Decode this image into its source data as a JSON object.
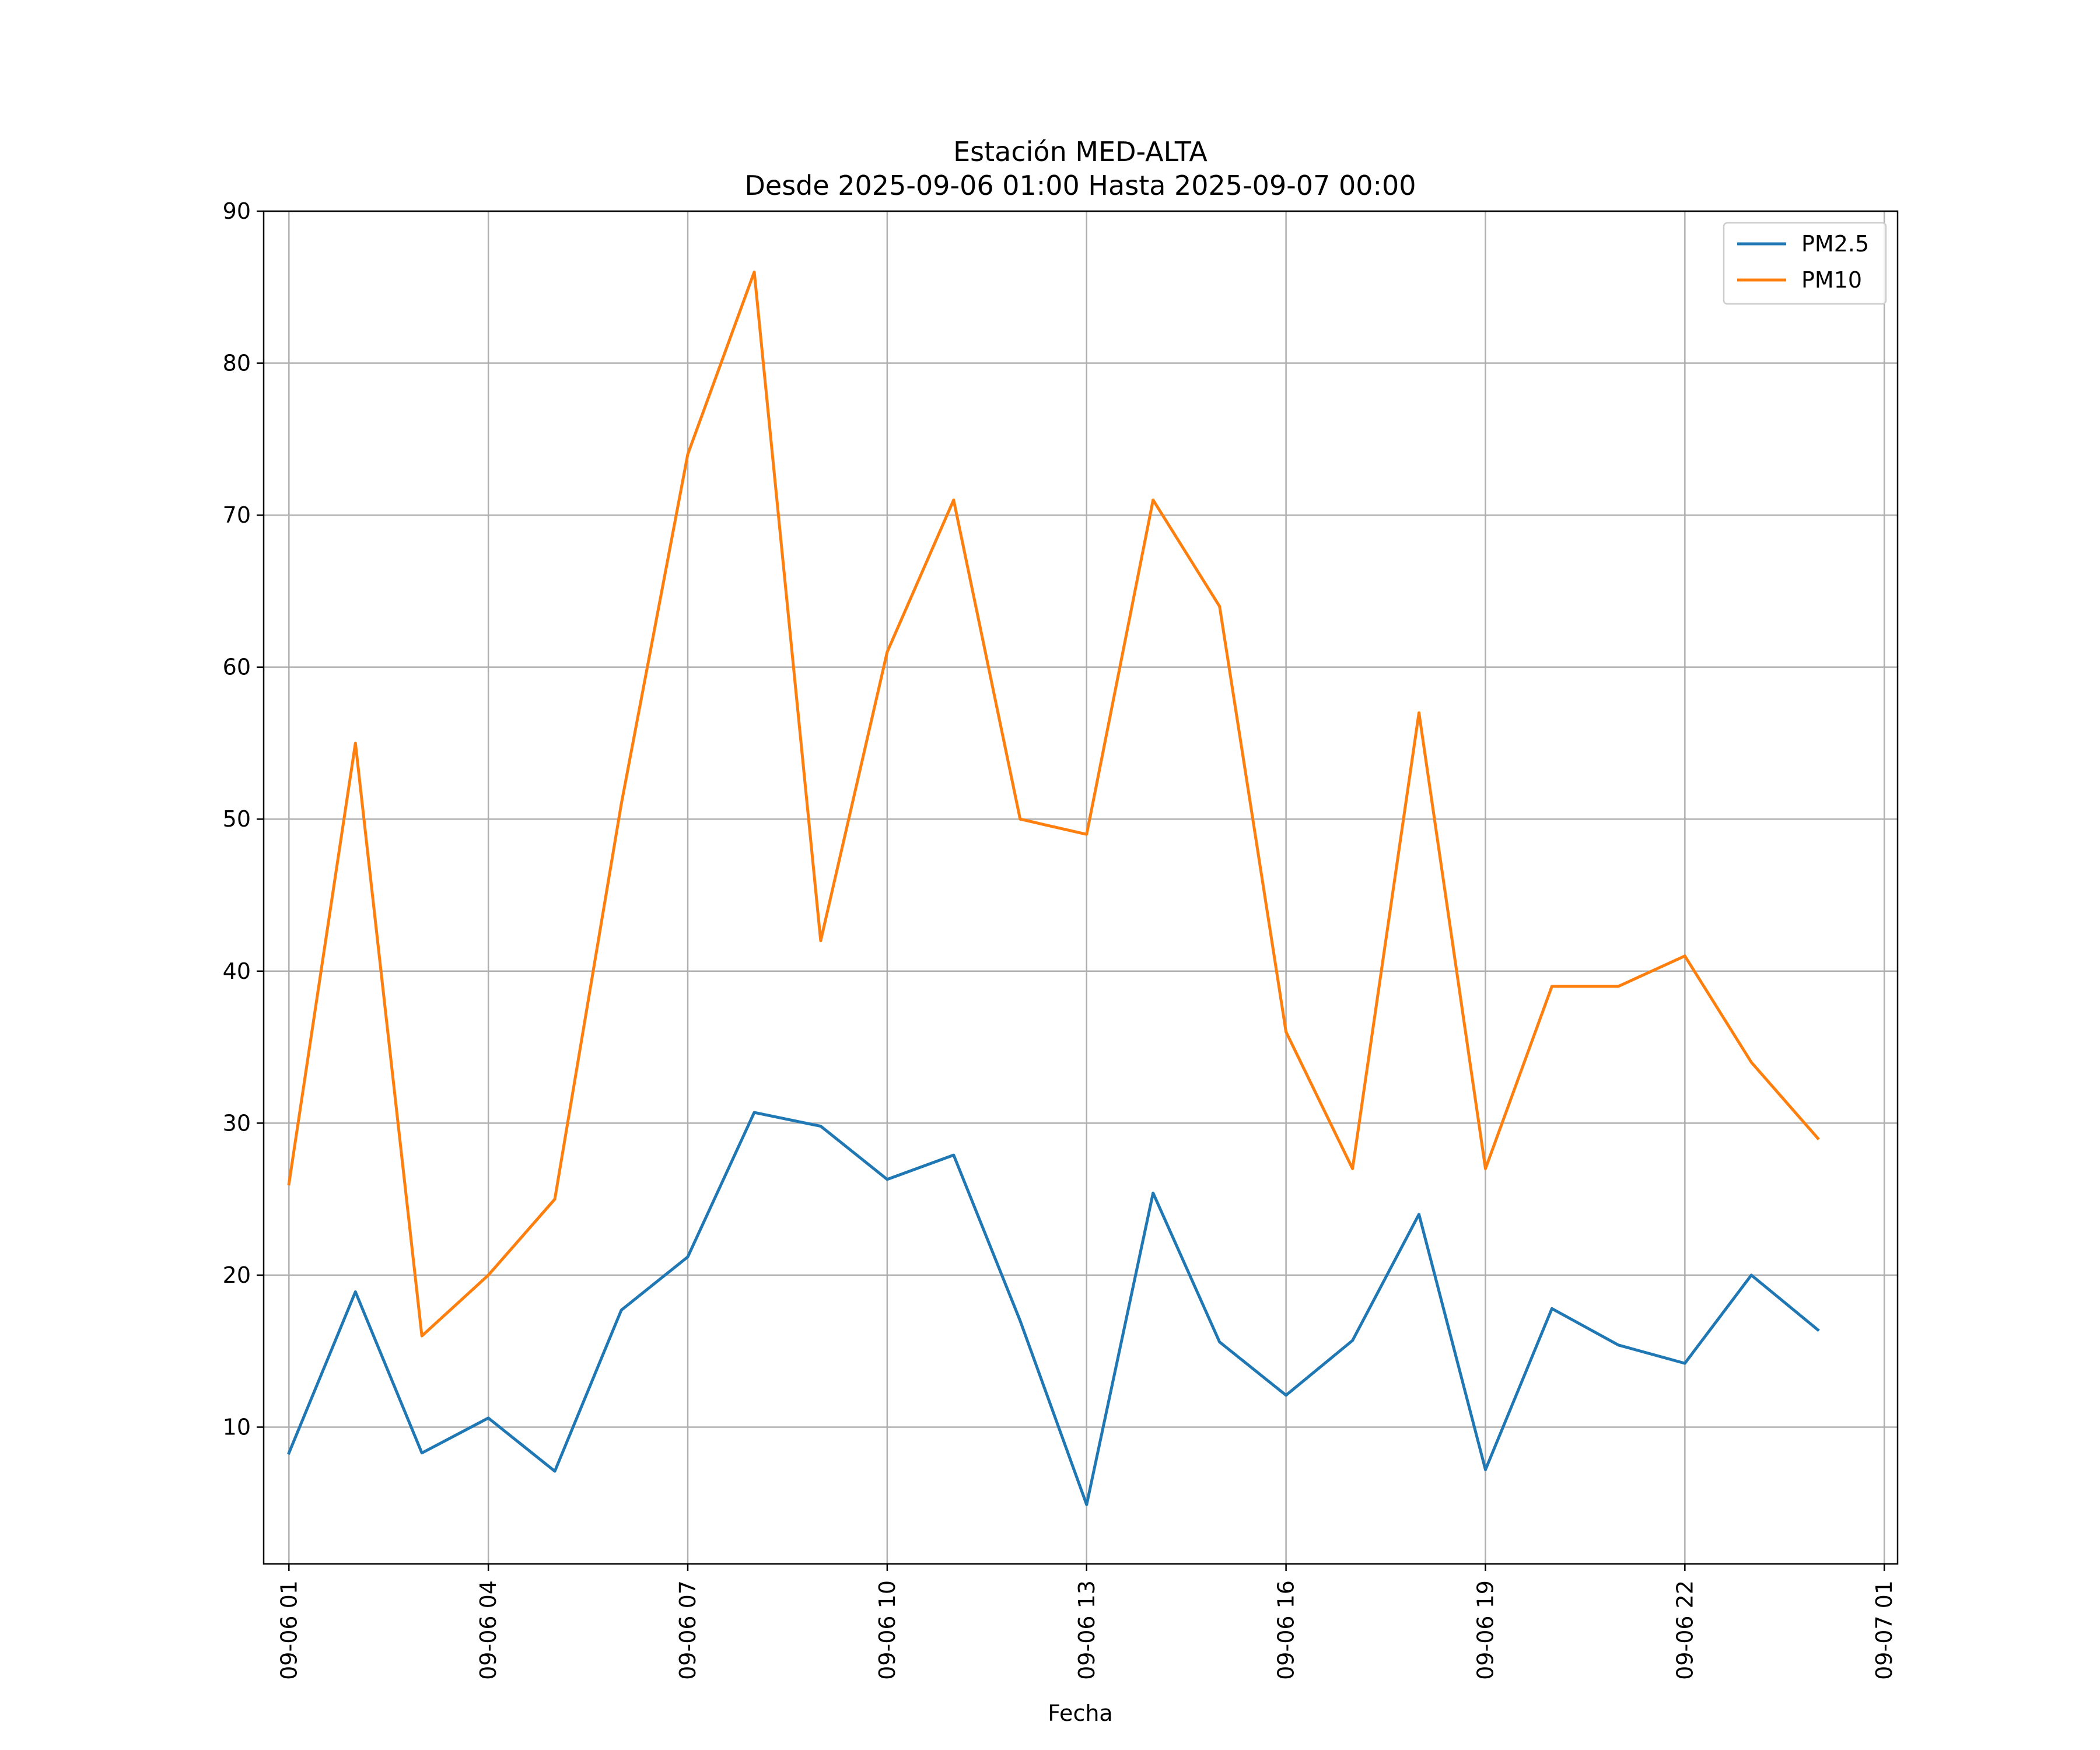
{
  "chart_data": {
    "type": "line",
    "title": "Estación MED-ALTA",
    "subtitle": "Desde 2025-09-06 01:00 Hasta 2025-09-07 00:00",
    "xlabel": "Fecha",
    "ylabel": "",
    "ylim": [
      1,
      90
    ],
    "yticks": [
      10,
      20,
      30,
      40,
      50,
      60,
      70,
      80,
      90
    ],
    "xlim": [
      -0.38,
      24.2
    ],
    "xticks": [
      {
        "pos": 0,
        "label": "09-06 01"
      },
      {
        "pos": 3,
        "label": "09-06 04"
      },
      {
        "pos": 6,
        "label": "09-06 07"
      },
      {
        "pos": 9,
        "label": "09-06 10"
      },
      {
        "pos": 12,
        "label": "09-06 13"
      },
      {
        "pos": 15,
        "label": "09-06 16"
      },
      {
        "pos": 18,
        "label": "09-06 19"
      },
      {
        "pos": 21,
        "label": "09-06 22"
      },
      {
        "pos": 24,
        "label": "09-07 01"
      }
    ],
    "x": [
      "09-06 01:00",
      "09-06 02:00",
      "09-06 03:00",
      "09-06 04:00",
      "09-06 05:00",
      "09-06 06:00",
      "09-06 07:00",
      "09-06 08:00",
      "09-06 09:00",
      "09-06 10:00",
      "09-06 11:00",
      "09-06 12:00",
      "09-06 13:00",
      "09-06 14:00",
      "09-06 15:00",
      "09-06 16:00",
      "09-06 17:00",
      "09-06 18:00",
      "09-06 19:00",
      "09-06 20:00",
      "09-06 21:00",
      "09-06 22:00",
      "09-06 23:00",
      "09-07 00:00"
    ],
    "grid": true,
    "legend_position": "top-right",
    "series": [
      {
        "name": "PM2.5",
        "color": "#1f77b4",
        "values": [
          8.3,
          18.9,
          8.3,
          10.6,
          7.1,
          17.7,
          21.2,
          30.7,
          29.8,
          26.3,
          27.9,
          17.0,
          4.9,
          25.4,
          15.6,
          12.1,
          15.7,
          24.0,
          7.2,
          17.8,
          15.4,
          14.2,
          20.0,
          16.4
        ]
      },
      {
        "name": "PM10",
        "color": "#ff7f0e",
        "values": [
          26,
          55,
          16,
          20,
          25,
          51,
          74,
          86,
          42,
          61,
          71,
          50,
          49,
          71,
          64,
          36,
          27,
          57,
          27,
          39,
          39,
          41,
          34,
          29
        ]
      }
    ]
  }
}
